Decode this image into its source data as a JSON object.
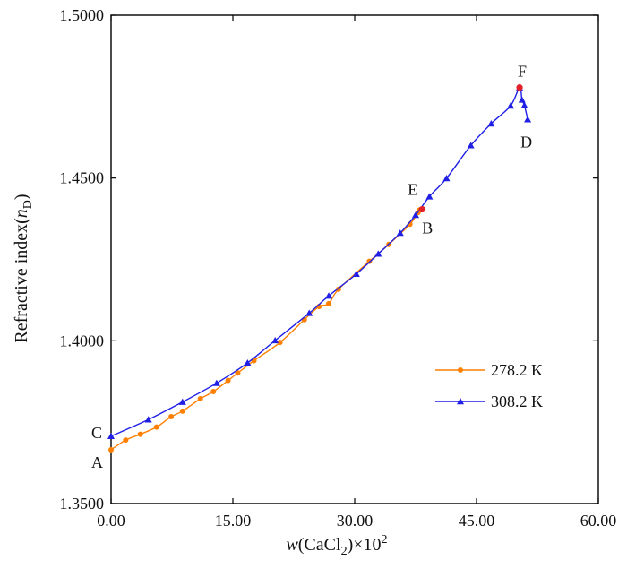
{
  "chart_data": {
    "type": "line",
    "title": "",
    "xlabel": "w(CaCl2)×10^2",
    "xlabel_parts": {
      "italic": "w",
      "open": "(CaCl",
      "sub": "2",
      "close": ")×10",
      "sup": "2"
    },
    "ylabel": "Refractive index(nD)",
    "ylabel_parts": {
      "main": "Refractive index(",
      "italic": "n",
      "sub": "D",
      "close": ")"
    },
    "xlim": [
      0,
      60
    ],
    "ylim": [
      1.35,
      1.5
    ],
    "xticks": [
      0,
      15,
      30,
      45,
      60
    ],
    "xtick_labels": [
      "0.00",
      "15.00",
      "30.00",
      "45.00",
      "60.00"
    ],
    "yticks": [
      1.35,
      1.4,
      1.45,
      1.5
    ],
    "ytick_labels": [
      "1.3500",
      "1.4000",
      "1.4500",
      "1.5000"
    ],
    "grid": false,
    "legend_position": "lower-right",
    "series": [
      {
        "name": "278.2 K",
        "color": "#ff8000",
        "marker": "circle",
        "x": [
          0,
          1.8,
          3.6,
          5.6,
          7.4,
          8.8,
          11.0,
          12.6,
          14.4,
          15.6,
          17.6,
          20.8,
          23.8,
          25.6,
          26.8,
          28.0,
          31.8,
          34.2,
          36.8,
          37.8,
          38.0,
          38.3,
          38.4
        ],
        "y": [
          1.3665,
          1.3695,
          1.3713,
          1.3735,
          1.3767,
          1.3784,
          1.3822,
          1.3844,
          1.3878,
          1.3901,
          1.3939,
          1.3995,
          1.4065,
          1.4105,
          1.4114,
          1.4158,
          1.4244,
          1.4296,
          1.4358,
          1.4394,
          1.4402,
          1.4404,
          1.4404
        ]
      },
      {
        "name": "308.2 K",
        "color": "#1f1fe6",
        "marker": "triangle",
        "x": [
          0,
          4.6,
          8.8,
          13.0,
          16.8,
          20.2,
          24.4,
          26.8,
          30.2,
          32.9,
          35.6,
          37.5,
          39.2,
          41.3,
          44.3,
          46.8,
          49.2,
          50.3,
          50.6,
          50.9,
          51.3
        ],
        "y": [
          1.3707,
          1.3758,
          1.3812,
          1.387,
          1.3932,
          1.4001,
          1.4085,
          1.4138,
          1.4205,
          1.4267,
          1.4331,
          1.4386,
          1.4443,
          1.4499,
          1.46,
          1.4667,
          1.4722,
          1.4778,
          1.474,
          1.4723,
          1.468
        ]
      }
    ],
    "highlight_points": [
      {
        "name": "B-E-invariant",
        "x": 38.3,
        "y": 1.4404,
        "color": "#e0202a"
      },
      {
        "name": "F-invariant",
        "x": 50.3,
        "y": 1.4778,
        "color": "#e0202a"
      }
    ],
    "annotations": [
      {
        "text": "A",
        "x": 0,
        "y": 1.3665
      },
      {
        "text": "C",
        "x": 0,
        "y": 1.3707
      },
      {
        "text": "E",
        "x": 38.3,
        "y": 1.4404
      },
      {
        "text": "B",
        "x": 38.3,
        "y": 1.4404
      },
      {
        "text": "F",
        "x": 50.3,
        "y": 1.4778
      },
      {
        "text": "D",
        "x": 51.3,
        "y": 1.468
      }
    ]
  }
}
